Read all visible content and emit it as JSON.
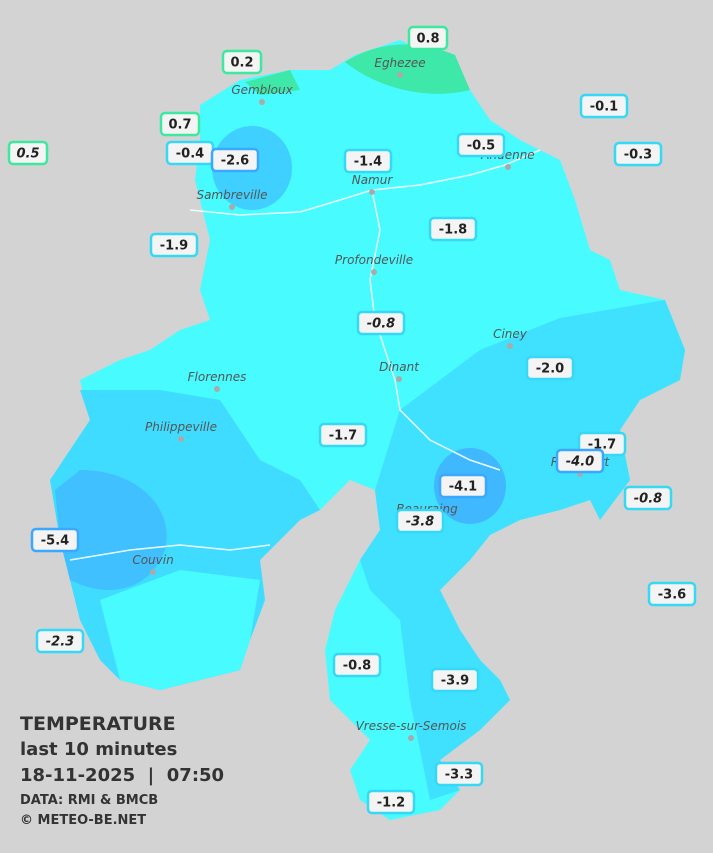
{
  "legend": {
    "title": "TEMPERATURE",
    "subtitle": "last 10 minutes",
    "timestamp": "18-11-2025  |  07:50",
    "source": "DATA: RMI & BMCB",
    "copyright": "© METEO-BE.NET"
  },
  "places": [
    "Gembloux",
    "Eghezee",
    "Andenne",
    "Namur",
    "Sambreville",
    "Profondeville",
    "Ciney",
    "Florennes",
    "Dinant",
    "Philippeville",
    "Rochefort",
    "Beauraing",
    "Couvin",
    "Vresse-sur-Semois"
  ],
  "readings": [
    "0.8",
    "0.2",
    "0.7",
    "0.5",
    "-0.1",
    "-0.4",
    "-2.6",
    "-1.4",
    "-0.5",
    "-0.3",
    "-1.9",
    "-1.8",
    "-0.8",
    "-2.0",
    "-1.7",
    "-1.7",
    "-4.0",
    "-4.1",
    "-0.8",
    "-3.8",
    "-5.4",
    "-3.6",
    "-2.3",
    "-0.8",
    "-3.9",
    "-3.3",
    "-1.2"
  ]
}
